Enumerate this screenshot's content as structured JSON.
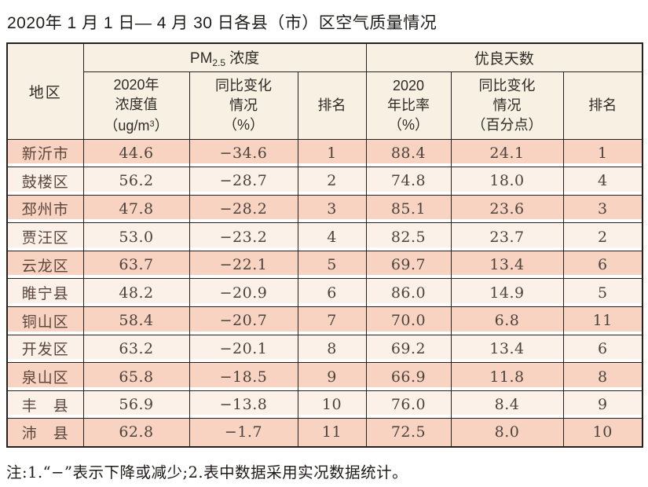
{
  "title": "2020年 1 月 1 日— 4 月 30 日各县（市）区空气质量情况",
  "note": "注:1.“−”表示下降或减少;2.表中数据采用实况数据统计。",
  "colors": {
    "row_salmon": "#f8d3c1",
    "row_cream": "#fbf1e8",
    "header_cream": "#f8f1e3",
    "border": "#24211f"
  },
  "table": {
    "headers": {
      "region": "地区",
      "pm_group": {
        "prefix": "PM",
        "sub": "2.5",
        "suffix": "浓度"
      },
      "good_group": "优良天数",
      "pm_value": {
        "line1": "2020年",
        "line2": "浓度值",
        "line3_open": "（ug/m",
        "line3_sup": "3",
        "line3_close": "）"
      },
      "pm_change": {
        "line1": "同比变化",
        "line2": "情况",
        "line3": "（%）"
      },
      "pm_rank": "排名",
      "good_ratio": {
        "line1": "2020",
        "line2": "年比率",
        "line3": "（%）"
      },
      "good_change": {
        "line1": "同比变化",
        "line2": "情况",
        "line3": "（百分点）"
      },
      "good_rank": "排名"
    },
    "rows": [
      {
        "region": "新沂市",
        "pm_value": "44.6",
        "pm_change": "−34.6",
        "pm_rank": "1",
        "good_ratio": "88.4",
        "good_change": "24.1",
        "good_rank": "1"
      },
      {
        "region": "鼓楼区",
        "pm_value": "56.2",
        "pm_change": "−28.7",
        "pm_rank": "2",
        "good_ratio": "74.8",
        "good_change": "18.0",
        "good_rank": "4"
      },
      {
        "region": "邳州市",
        "pm_value": "47.8",
        "pm_change": "−28.2",
        "pm_rank": "3",
        "good_ratio": "85.1",
        "good_change": "23.6",
        "good_rank": "3"
      },
      {
        "region": "贾汪区",
        "pm_value": "53.0",
        "pm_change": "−23.2",
        "pm_rank": "4",
        "good_ratio": "82.5",
        "good_change": "23.7",
        "good_rank": "2"
      },
      {
        "region": "云龙区",
        "pm_value": "63.7",
        "pm_change": "−22.1",
        "pm_rank": "5",
        "good_ratio": "69.7",
        "good_change": "13.4",
        "good_rank": "6"
      },
      {
        "region": "睢宁县",
        "pm_value": "48.2",
        "pm_change": "−20.9",
        "pm_rank": "6",
        "good_ratio": "86.0",
        "good_change": "14.9",
        "good_rank": "5"
      },
      {
        "region": "铜山区",
        "pm_value": "58.4",
        "pm_change": "−20.7",
        "pm_rank": "7",
        "good_ratio": "70.0",
        "good_change": "6.8",
        "good_rank": "11"
      },
      {
        "region": "开发区",
        "pm_value": "63.2",
        "pm_change": "−20.1",
        "pm_rank": "8",
        "good_ratio": "69.2",
        "good_change": "13.4",
        "good_rank": "6"
      },
      {
        "region": "泉山区",
        "pm_value": "65.8",
        "pm_change": "−18.5",
        "pm_rank": "9",
        "good_ratio": "66.9",
        "good_change": "11.8",
        "good_rank": "8"
      },
      {
        "region": "丰　县",
        "pm_value": "56.9",
        "pm_change": "−13.8",
        "pm_rank": "10",
        "good_ratio": "76.0",
        "good_change": "8.4",
        "good_rank": "9"
      },
      {
        "region": "沛　县",
        "pm_value": "62.8",
        "pm_change": "−1.7",
        "pm_rank": "11",
        "good_ratio": "72.5",
        "good_change": "8.0",
        "good_rank": "10"
      }
    ]
  }
}
